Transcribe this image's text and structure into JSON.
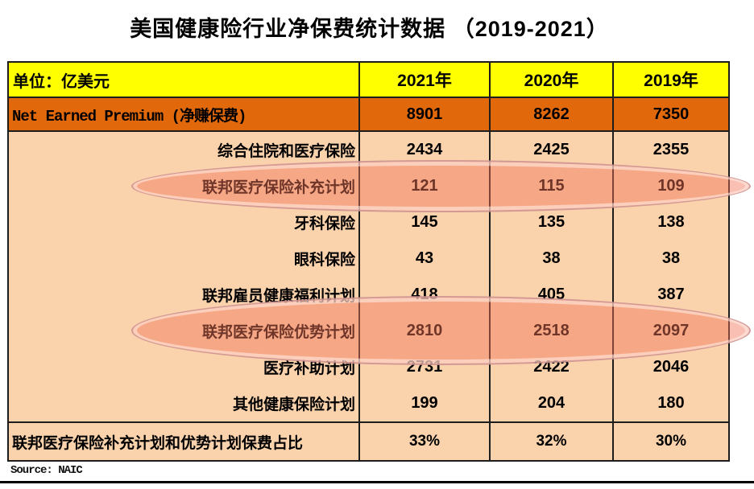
{
  "title": "美国健康险行业净保费统计数据 （2019-2021）",
  "table": {
    "unit_label": "单位：亿美元",
    "year_headers": [
      "2021年",
      "2020年",
      "2019年"
    ],
    "total_row": {
      "label": "Net Earned Premium (净赚保费)",
      "values": [
        "8901",
        "8262",
        "7350"
      ]
    },
    "rows": [
      {
        "label": "综合住院和医疗保险",
        "values": [
          "2434",
          "2425",
          "2355"
        ],
        "highlighted": false
      },
      {
        "label": "联邦医疗保险补充计划",
        "values": [
          "121",
          "115",
          "109"
        ],
        "highlighted": true
      },
      {
        "label": "牙科保险",
        "values": [
          "145",
          "135",
          "138"
        ],
        "highlighted": false
      },
      {
        "label": "眼科保险",
        "values": [
          "43",
          "38",
          "38"
        ],
        "highlighted": false
      },
      {
        "label": "联邦雇员健康福利计划",
        "values": [
          "418",
          "405",
          "387"
        ],
        "highlighted": false
      },
      {
        "label": "联邦医疗保险优势计划",
        "values": [
          "2810",
          "2518",
          "2097"
        ],
        "highlighted": true
      },
      {
        "label": "医疗补助计划",
        "values": [
          "2731",
          "2422",
          "2046"
        ],
        "highlighted": false
      },
      {
        "label": "其他健康保险计划",
        "values": [
          "199",
          "204",
          "180"
        ],
        "highlighted": false
      }
    ],
    "footer_row": {
      "label": "联邦医疗保险补充计划和优势计划保费占比",
      "values": [
        "33%",
        "32%",
        "30%"
      ]
    }
  },
  "source": "Source: NAIC",
  "colors": {
    "header_bg": "#ffff00",
    "total_row_bg": "#e2690b",
    "body_bg": "#fad2ac",
    "highlight_fill": "#f27458",
    "border": "#1d1d1d"
  },
  "chart_data": {
    "type": "table",
    "title": "美国健康险行业净保费统计数据 （2019-2021）",
    "unit": "亿美元",
    "columns": [
      "2021年",
      "2020年",
      "2019年"
    ],
    "rows": [
      {
        "label": "Net Earned Premium (净赚保费)",
        "values": [
          8901,
          8262,
          7350
        ]
      },
      {
        "label": "综合住院和医疗保险",
        "values": [
          2434,
          2425,
          2355
        ]
      },
      {
        "label": "联邦医疗保险补充计划",
        "values": [
          121,
          115,
          109
        ]
      },
      {
        "label": "牙科保险",
        "values": [
          145,
          135,
          138
        ]
      },
      {
        "label": "眼科保险",
        "values": [
          43,
          38,
          38
        ]
      },
      {
        "label": "联邦雇员健康福利计划",
        "values": [
          418,
          405,
          387
        ]
      },
      {
        "label": "联邦医疗保险优势计划",
        "values": [
          2810,
          2518,
          2097
        ]
      },
      {
        "label": "医疗补助计划",
        "values": [
          2731,
          2422,
          2046
        ]
      },
      {
        "label": "其他健康保险计划",
        "values": [
          199,
          204,
          180
        ]
      },
      {
        "label": "联邦医疗保险补充计划和优势计划保费占比",
        "values": [
          "33%",
          "32%",
          "30%"
        ]
      }
    ],
    "highlighted_rows": [
      "联邦医疗保险补充计划",
      "联邦医疗保险优势计划"
    ],
    "source": "Source: NAIC"
  }
}
